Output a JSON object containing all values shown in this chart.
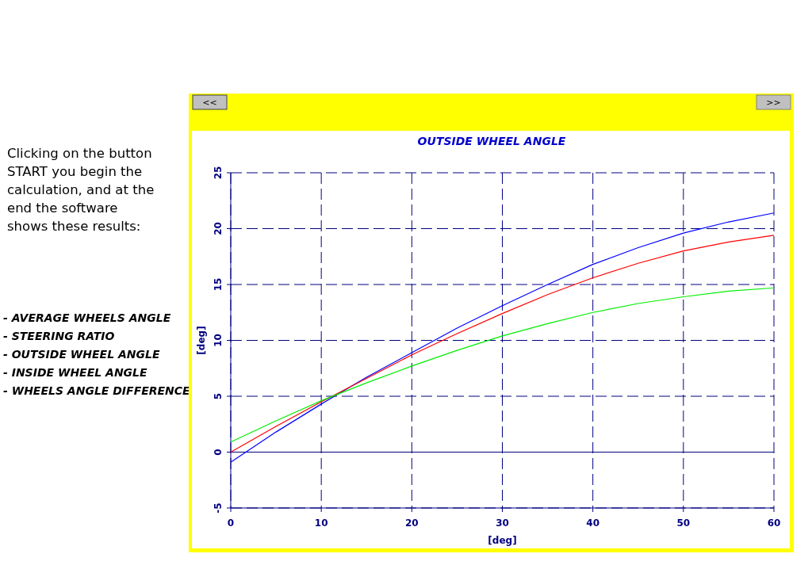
{
  "chart_data": {
    "type": "line",
    "title": "OUTSIDE WHEEL ANGLE",
    "xlabel": "[deg]",
    "ylabel": "[deg]",
    "annotations": [
      "Clicking on the button START you begin the calculation, and at the end the software shows these results:",
      "- AVERAGE WHEELS ANGLE",
      "- STEERING RATIO",
      "- OUTSIDE WHEEL ANGLE",
      "- INSIDE WHEEL ANGLE",
      "- WHEELS ANGLE DIFFERENCE",
      "<<",
      ">>"
    ],
    "x": [
      0,
      5,
      10,
      15,
      20,
      25,
      30,
      35,
      40,
      45,
      50,
      55,
      60
    ],
    "series": [
      {
        "color": "#0000ff",
        "values": [
          -0.9,
          1.8,
          4.3,
          6.7,
          8.9,
          11.1,
          13.1,
          15.0,
          16.8,
          18.3,
          19.6,
          20.6,
          21.4
        ]
      },
      {
        "color": "#ff0000",
        "values": [
          0,
          2.3,
          4.5,
          6.6,
          8.7,
          10.6,
          12.4,
          14.1,
          15.6,
          16.9,
          18.0,
          18.8,
          19.4
        ]
      },
      {
        "color": "#00ee00",
        "values": [
          0.9,
          2.8,
          4.6,
          6.2,
          7.7,
          9.1,
          10.4,
          11.5,
          12.5,
          13.3,
          13.9,
          14.4,
          14.7
        ]
      }
    ],
    "xlim": [
      0,
      60
    ],
    "xticks": [
      0,
      10,
      20,
      30,
      40,
      50,
      60
    ],
    "ylim": [
      -5,
      25
    ],
    "yticks": [
      -5,
      0,
      5,
      10,
      15,
      20,
      25
    ],
    "ref_lines": [
      {
        "axis": "y",
        "value": 0,
        "color": "#000080",
        "line_style": "solid"
      }
    ],
    "grid": true,
    "marker": "none",
    "line_style": "solid"
  }
}
